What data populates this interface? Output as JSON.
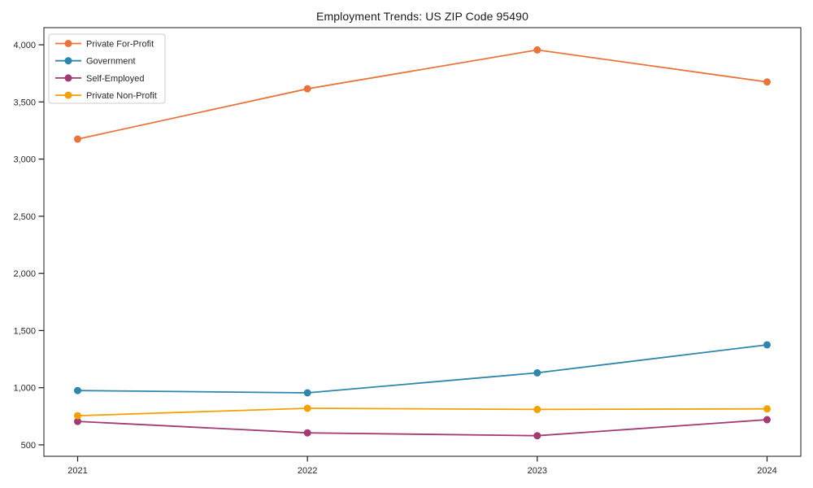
{
  "figure": {
    "background": "#ffffff",
    "axis_color": "#1a1a1a",
    "text_color": "#262626"
  },
  "chart_data": {
    "type": "line",
    "title": "Employment Trends: US ZIP Code 95490",
    "categories": [
      "2021",
      "2022",
      "2023",
      "2024"
    ],
    "series": [
      {
        "name": "Private For-Profit",
        "color": "#e8743b",
        "values": [
          3175,
          3615,
          3955,
          3675
        ]
      },
      {
        "name": "Government",
        "color": "#2e86ab",
        "values": [
          975,
          955,
          1130,
          1375
        ]
      },
      {
        "name": "Self-Employed",
        "color": "#a23b72",
        "values": [
          705,
          605,
          580,
          720
        ]
      },
      {
        "name": "Private Non-Profit",
        "color": "#f2a104",
        "values": [
          755,
          820,
          810,
          815
        ]
      }
    ],
    "xlabel": "",
    "ylabel": "",
    "ylim": [
      400,
      4150
    ],
    "yticks": [
      500,
      1000,
      1500,
      2000,
      2500,
      3000,
      3500,
      4000
    ],
    "ytick_labels": [
      "500",
      "1,000",
      "1,500",
      "2,000",
      "2,500",
      "3,000",
      "3,500",
      "4,000"
    ],
    "grid": false,
    "marker": "circle",
    "legend": {
      "position": "upper-left",
      "frame": true
    }
  }
}
